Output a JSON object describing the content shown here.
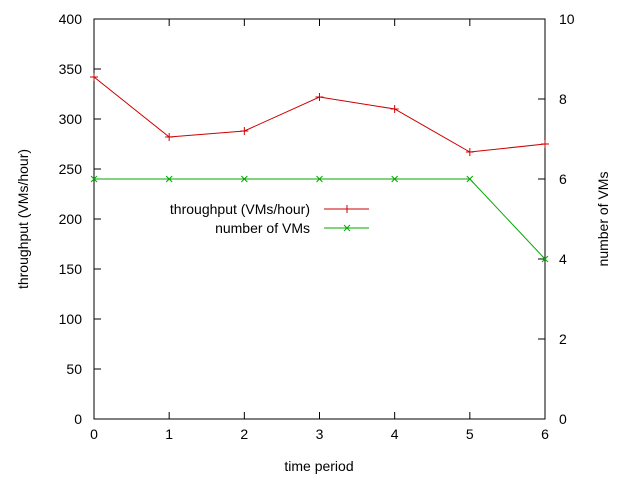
{
  "chart_data": {
    "type": "line",
    "x": [
      0,
      1,
      2,
      3,
      4,
      5,
      6
    ],
    "xlabel": "time period",
    "ylabel": "throughput (VMs/hour)",
    "y2label": "number of VMs",
    "xlim": [
      0,
      6
    ],
    "ylim": [
      0,
      400
    ],
    "y2lim": [
      0,
      10
    ],
    "xticks": [
      "0",
      "1",
      "2",
      "3",
      "4",
      "5",
      "6"
    ],
    "yticks": [
      "0",
      "50",
      "100",
      "150",
      "200",
      "250",
      "300",
      "350",
      "400"
    ],
    "y2ticks": [
      "0",
      "2",
      "4",
      "6",
      "8",
      "10"
    ],
    "grid": false,
    "legend_position": "center-left",
    "series": [
      {
        "name": "throughput (VMs/hour)",
        "axis": "left",
        "color": "#cc0000",
        "marker": "plus",
        "values": [
          342,
          282,
          288,
          322,
          310,
          267,
          275
        ]
      },
      {
        "name": "number of VMs",
        "axis": "right",
        "color": "#00aa00",
        "marker": "cross",
        "values": [
          6,
          6,
          6,
          6,
          6,
          6,
          4
        ]
      }
    ]
  }
}
